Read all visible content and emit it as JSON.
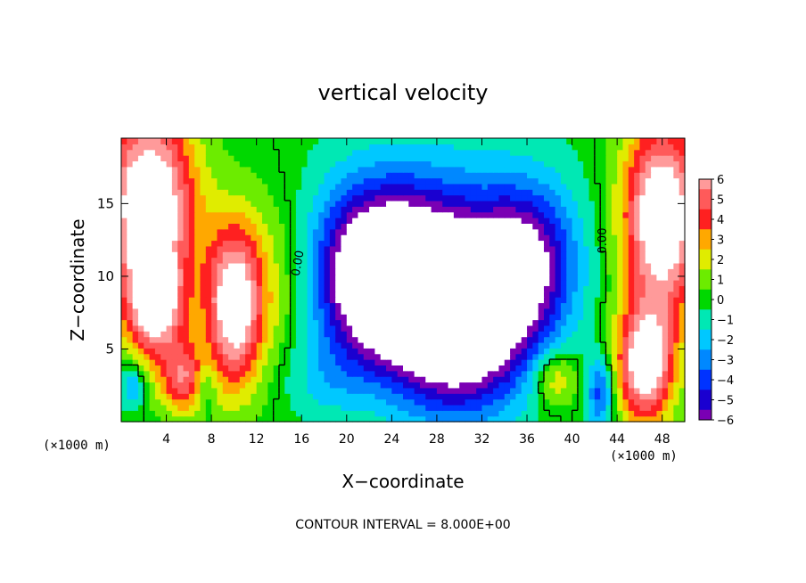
{
  "chart_data": {
    "type": "heatmap",
    "title": "vertical velocity",
    "xlabel": "X−coordinate",
    "ylabel": "Z−coordinate",
    "x_unit_left": "(×1000 m)",
    "x_unit_right": "(×1000 m)",
    "xlim": [
      0,
      50
    ],
    "ylim": [
      0,
      19.5
    ],
    "xticks": [
      "4",
      "8",
      "12",
      "16",
      "20",
      "24",
      "28",
      "32",
      "36",
      "40",
      "44",
      "48"
    ],
    "yticks": [
      "5",
      "10",
      "15"
    ],
    "colorbar": {
      "range": [
        -6,
        6
      ],
      "labels": [
        "6",
        "5",
        "4",
        "3",
        "2",
        "1",
        "0",
        "−1",
        "−2",
        "−3",
        "−4",
        "−5",
        "−6"
      ]
    },
    "contour_labels": [
      "0.00",
      "0.00"
    ],
    "footer": "CONTOUR INTERVAL = 8.000E+00",
    "field_blobs": [
      {
        "x": 2.5,
        "z": 15,
        "rx": 4,
        "rz": 6.5,
        "w": 9
      },
      {
        "x": 3,
        "z": 8,
        "rx": 2.5,
        "rz": 3.5,
        "w": 7
      },
      {
        "x": 10,
        "z": 8,
        "rx": 2.5,
        "rz": 5.5,
        "w": 8
      },
      {
        "x": 5.5,
        "z": 3,
        "rx": 2,
        "rz": 2.5,
        "w": 5
      },
      {
        "x": 14,
        "z": 10,
        "rx": 4,
        "rz": 6,
        "w": 2
      },
      {
        "x": 1,
        "z": 2.5,
        "rx": 1,
        "rz": 1.5,
        "w": -3
      },
      {
        "x": 7.5,
        "z": 2.5,
        "rx": 0.9,
        "rz": 2,
        "w": -2
      },
      {
        "x": 23,
        "z": 10,
        "rx": 5.5,
        "rz": 5.5,
        "w": -9
      },
      {
        "x": 30,
        "z": 7,
        "rx": 6,
        "rz": 6,
        "w": -10
      },
      {
        "x": 28,
        "z": 12,
        "rx": 11,
        "rz": 7,
        "w": -3
      },
      {
        "x": 36,
        "z": 11,
        "rx": 4,
        "rz": 5,
        "w": -5
      },
      {
        "x": 18,
        "z": 3,
        "rx": 4,
        "rz": 3,
        "w": -1.5
      },
      {
        "x": 38.5,
        "z": 3,
        "rx": 2,
        "rz": 2,
        "w": 3
      },
      {
        "x": 42.5,
        "z": 2,
        "rx": 1.2,
        "rz": 2.5,
        "w": -4
      },
      {
        "x": 48,
        "z": 14,
        "rx": 3.5,
        "rz": 6.5,
        "w": 9
      },
      {
        "x": 46.5,
        "z": 4,
        "rx": 2.5,
        "rz": 4,
        "w": 8
      }
    ]
  }
}
